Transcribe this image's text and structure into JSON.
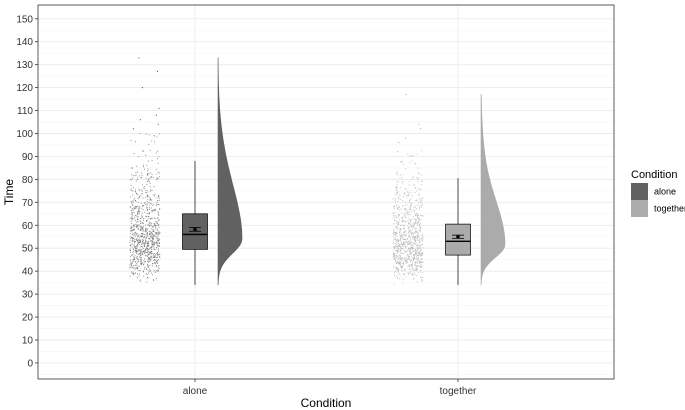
{
  "chart_data": {
    "type": "raincloud",
    "xlabel": "Condition",
    "ylabel": "Time",
    "categories": [
      "alone",
      "together"
    ],
    "ylim": [
      -7,
      156
    ],
    "y_ticks": [
      0,
      10,
      20,
      30,
      40,
      50,
      60,
      70,
      80,
      90,
      100,
      110,
      120,
      130,
      140,
      150
    ],
    "grid": true,
    "theme": "bw",
    "legend": {
      "title": "Condition",
      "position": "right",
      "entries": [
        "alone",
        "together"
      ]
    },
    "colors": {
      "alone": "#616161",
      "together": "#ababab",
      "panel_border": "#333333",
      "grid_major": "#ebebeb",
      "grid_minor": "#f4f4f4"
    },
    "series": [
      {
        "name": "alone",
        "box": {
          "min": 34,
          "q1": 49.5,
          "median": 56,
          "q3": 65,
          "max": 88
        },
        "mean": 58.2,
        "ci": [
          57.4,
          59
        ],
        "density_mode": 54,
        "range": [
          34,
          133
        ],
        "outliers": [
          133,
          127,
          120,
          111,
          108,
          106,
          104,
          102,
          99
        ],
        "n_points": 900
      },
      {
        "name": "together",
        "box": {
          "min": 34,
          "q1": 47,
          "median": 53,
          "q3": 60.5,
          "max": 80.5
        },
        "mean": 55,
        "ci": [
          54.3,
          55.7
        ],
        "density_mode": 51.5,
        "range": [
          34,
          117
        ],
        "outliers": [
          117,
          104,
          102,
          98,
          96,
          92
        ],
        "n_points": 900
      }
    ]
  }
}
